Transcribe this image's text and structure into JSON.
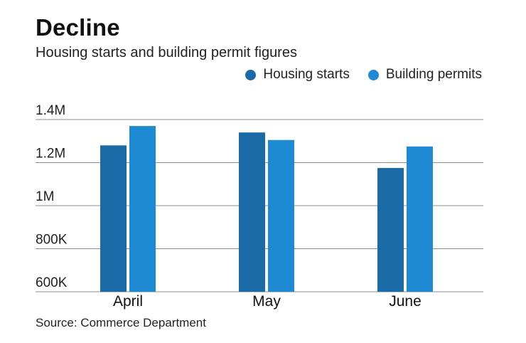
{
  "title": "Decline",
  "subtitle": "Housing starts and building permit figures",
  "source": "Source: Commerce Department",
  "colors": {
    "housing_starts": "#1a6aa8",
    "building_permits": "#1f8ad4",
    "grid": "#8c8c8c"
  },
  "chart_data": {
    "type": "bar",
    "categories": [
      "April",
      "May",
      "June"
    ],
    "series": [
      {
        "name": "Housing starts",
        "values": [
          1280000,
          1340000,
          1175000
        ]
      },
      {
        "name": "Building permits",
        "values": [
          1370000,
          1305000,
          1275000
        ]
      }
    ],
    "yticks": [
      600000,
      800000,
      1000000,
      1200000,
      1400000
    ],
    "ytick_labels": [
      "600K",
      "800K",
      "1M",
      "1.2M",
      "1.4M"
    ],
    "ylim": [
      600000,
      1400000
    ],
    "grid": true,
    "legend_position": "top-right"
  }
}
